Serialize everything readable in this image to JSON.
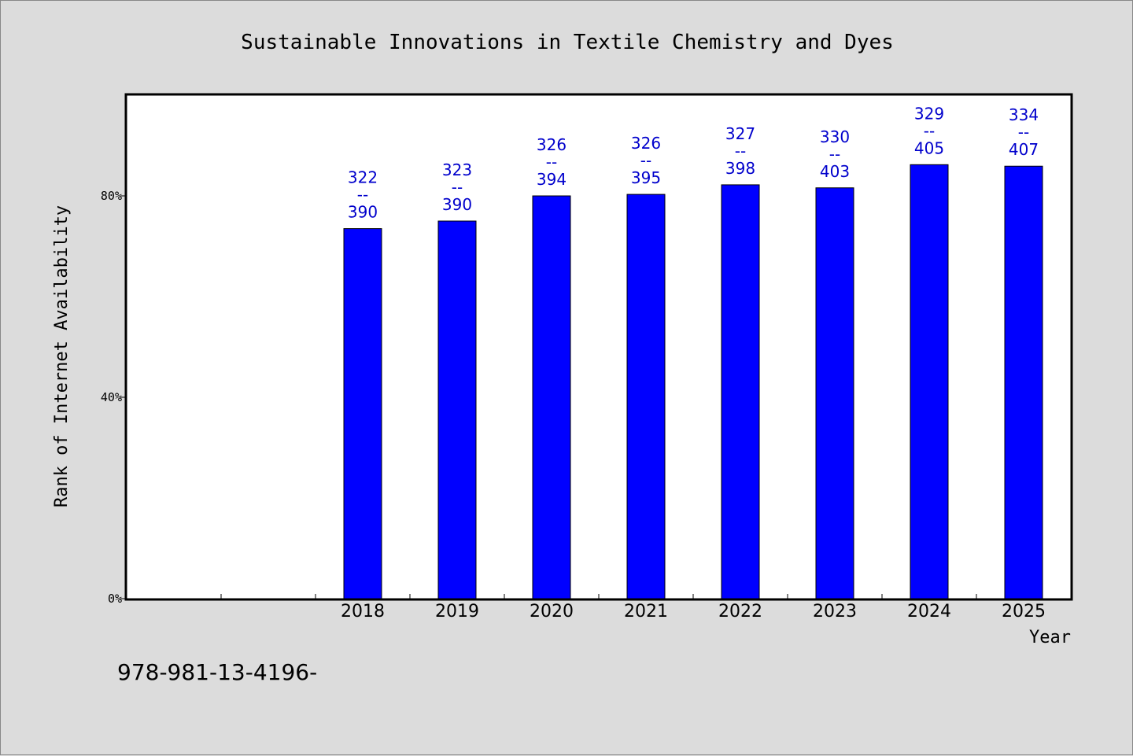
{
  "chart_data": {
    "type": "bar",
    "title": "Sustainable Innovations in Textile Chemistry and Dyes",
    "xlabel": "Year",
    "ylabel": "Rank of Internet Availability",
    "categories": [
      "",
      "",
      "2018",
      "2019",
      "2020",
      "2021",
      "2022",
      "2023",
      "2024",
      "2025"
    ],
    "values": [
      null,
      null,
      0.735,
      0.75,
      0.8,
      0.803,
      0.822,
      0.816,
      0.862,
      0.859
    ],
    "labels": [
      null,
      null,
      [
        "322",
        "--",
        "390"
      ],
      [
        "323",
        "--",
        "390"
      ],
      [
        "326",
        "--",
        "394"
      ],
      [
        "326",
        "--",
        "395"
      ],
      [
        "327",
        "--",
        "398"
      ],
      [
        "330",
        "--",
        "403"
      ],
      [
        "329",
        "--",
        "405"
      ],
      [
        "334",
        "--",
        "407"
      ]
    ],
    "yticks": [
      {
        "value": 0,
        "label": "0%"
      },
      {
        "value": 0.4,
        "label": "40%"
      },
      {
        "value": 0.8,
        "label": "80%"
      }
    ],
    "ylim": [
      0,
      1.0
    ],
    "grid": false,
    "colors": {
      "bar": "#0000ff",
      "bar_edge": "#000000",
      "label": "#0000cc"
    }
  },
  "footer": {
    "text": "978-981-13-4196-"
  }
}
